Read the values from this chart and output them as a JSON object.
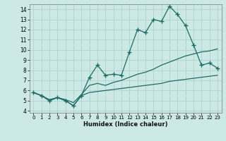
{
  "xlabel": "Humidex (Indice chaleur)",
  "background_color": "#cce9e5",
  "grid_color": "#aacfcc",
  "line_color": "#1e6b65",
  "xlim": [
    -0.5,
    23.5
  ],
  "ylim": [
    3.8,
    14.5
  ],
  "yticks": [
    4,
    5,
    6,
    7,
    8,
    9,
    10,
    11,
    12,
    13,
    14
  ],
  "xticks": [
    0,
    1,
    2,
    3,
    4,
    5,
    6,
    7,
    8,
    9,
    10,
    11,
    12,
    13,
    14,
    15,
    16,
    17,
    18,
    19,
    20,
    21,
    22,
    23
  ],
  "series1_x": [
    0,
    1,
    2,
    3,
    4,
    5,
    6,
    7,
    8,
    9,
    10,
    11,
    12,
    13,
    14,
    15,
    16,
    17,
    18,
    19,
    20,
    21,
    22,
    23
  ],
  "series1_y": [
    5.8,
    5.5,
    5.0,
    5.3,
    5.0,
    4.5,
    5.5,
    7.3,
    8.5,
    7.5,
    7.6,
    7.5,
    9.8,
    12.0,
    11.7,
    13.0,
    12.8,
    14.3,
    13.5,
    12.4,
    10.5,
    8.5,
    8.7,
    8.2
  ],
  "series2_x": [
    0,
    1,
    2,
    3,
    4,
    5,
    6,
    7,
    8,
    9,
    10,
    11,
    12,
    13,
    14,
    15,
    16,
    17,
    18,
    19,
    20,
    21,
    22,
    23
  ],
  "series2_y": [
    5.8,
    5.5,
    5.1,
    5.3,
    5.1,
    4.8,
    5.6,
    6.5,
    6.7,
    6.5,
    6.8,
    7.0,
    7.3,
    7.6,
    7.8,
    8.1,
    8.5,
    8.8,
    9.1,
    9.4,
    9.6,
    9.8,
    9.9,
    10.1
  ],
  "series3_x": [
    0,
    1,
    2,
    3,
    4,
    5,
    6,
    7,
    8,
    9,
    10,
    11,
    12,
    13,
    14,
    15,
    16,
    17,
    18,
    19,
    20,
    21,
    22,
    23
  ],
  "series3_y": [
    5.8,
    5.5,
    5.0,
    5.3,
    5.0,
    4.5,
    5.5,
    5.8,
    5.9,
    6.0,
    6.1,
    6.2,
    6.3,
    6.4,
    6.5,
    6.6,
    6.7,
    6.9,
    7.0,
    7.1,
    7.2,
    7.3,
    7.4,
    7.5
  ]
}
